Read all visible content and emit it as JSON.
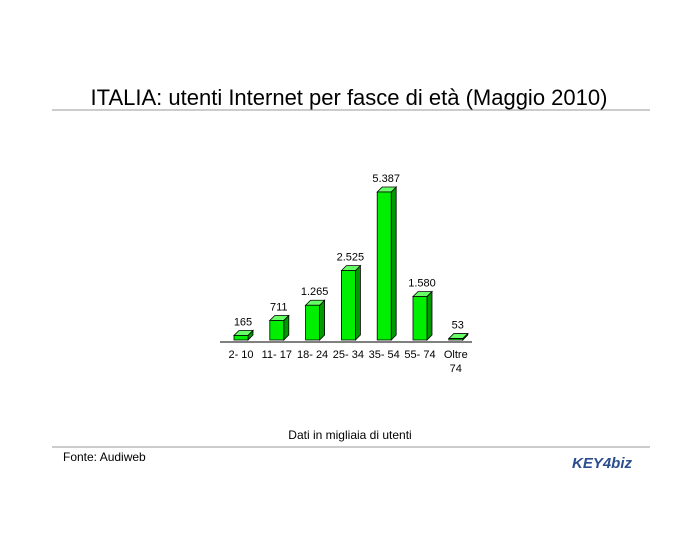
{
  "chart_data": {
    "type": "bar",
    "title": "ITALIA: utenti Internet per fasce di età (Maggio 2010)",
    "categories": [
      "2- 10",
      "11- 17",
      "18- 24",
      "25- 34",
      "35- 54",
      "55- 74",
      "Oltre 74"
    ],
    "values": [
      165,
      711,
      1265,
      2525,
      5387,
      1580,
      53
    ],
    "value_labels": [
      "165",
      "711",
      "1.265",
      "2.525",
      "5.387",
      "1.580",
      "53"
    ],
    "color": "#00ee00",
    "note": "Dati in migliaia di utenti",
    "source": "Fonte: Audiweb",
    "logo": "KEY4biz"
  }
}
